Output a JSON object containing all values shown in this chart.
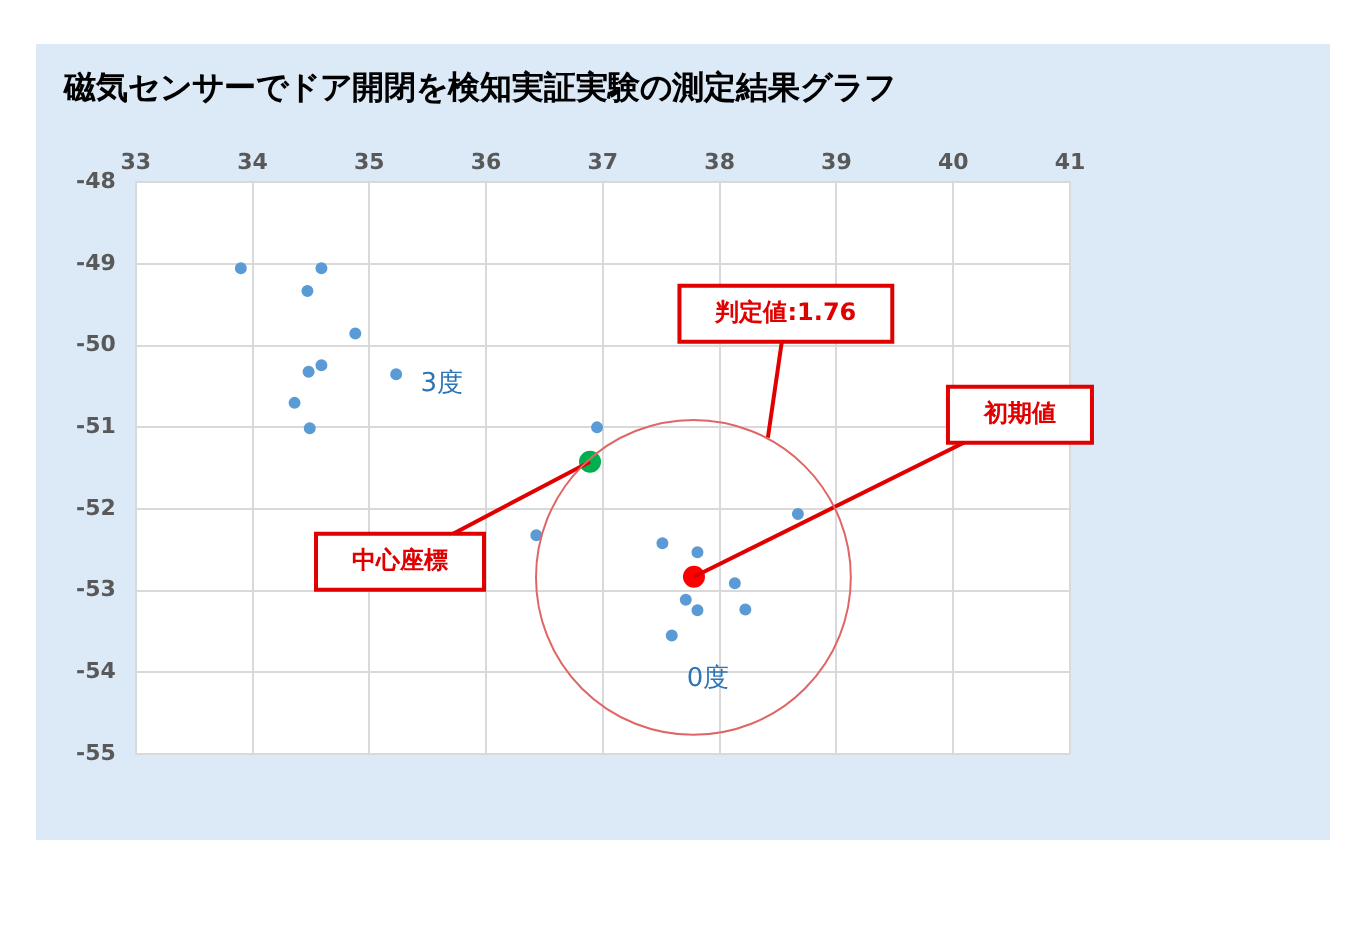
{
  "chart_data": {
    "type": "scatter",
    "title": "磁気センサーでドア開閉を検知実証実験の測定結果グラフ",
    "xlim": [
      33,
      41
    ],
    "xticks": [
      33,
      34,
      35,
      36,
      37,
      38,
      39,
      40,
      41
    ],
    "ylim": [
      -55,
      -48
    ],
    "yticks": [
      -55,
      -54,
      -53,
      -52,
      -51,
      -50,
      -49,
      -48
    ],
    "grid": true,
    "legend": false,
    "marker": "circle",
    "series": [
      {
        "color": "#5b9bd5",
        "x": [
          33.9,
          34.59,
          34.47,
          34.88,
          34.59,
          34.48,
          35.23,
          34.36,
          34.49,
          36.95,
          36.43,
          38.67,
          37.51,
          37.81,
          38.13,
          37.71,
          37.81,
          38.22,
          37.59
        ],
        "values": [
          -49.05,
          -49.05,
          -49.33,
          -49.85,
          -50.24,
          -50.32,
          -50.35,
          -50.7,
          -51.01,
          -51.0,
          -52.32,
          -52.06,
          -52.42,
          -52.53,
          -52.91,
          -53.11,
          -53.24,
          -53.23,
          -53.55
        ]
      },
      {
        "color": "#00b050",
        "x": [
          36.89
        ],
        "values": [
          -51.42
        ]
      },
      {
        "color": "#ff0000",
        "x": [
          37.78
        ],
        "values": [
          -52.83
        ]
      }
    ],
    "annotations": [
      "3度",
      "0度",
      {
        "text": "中心座標",
        "x": 36.89,
        "y": -51.42
      },
      "判定値:1.76",
      {
        "text": "初期値",
        "x": 37.78,
        "y": -52.83
      }
    ]
  }
}
